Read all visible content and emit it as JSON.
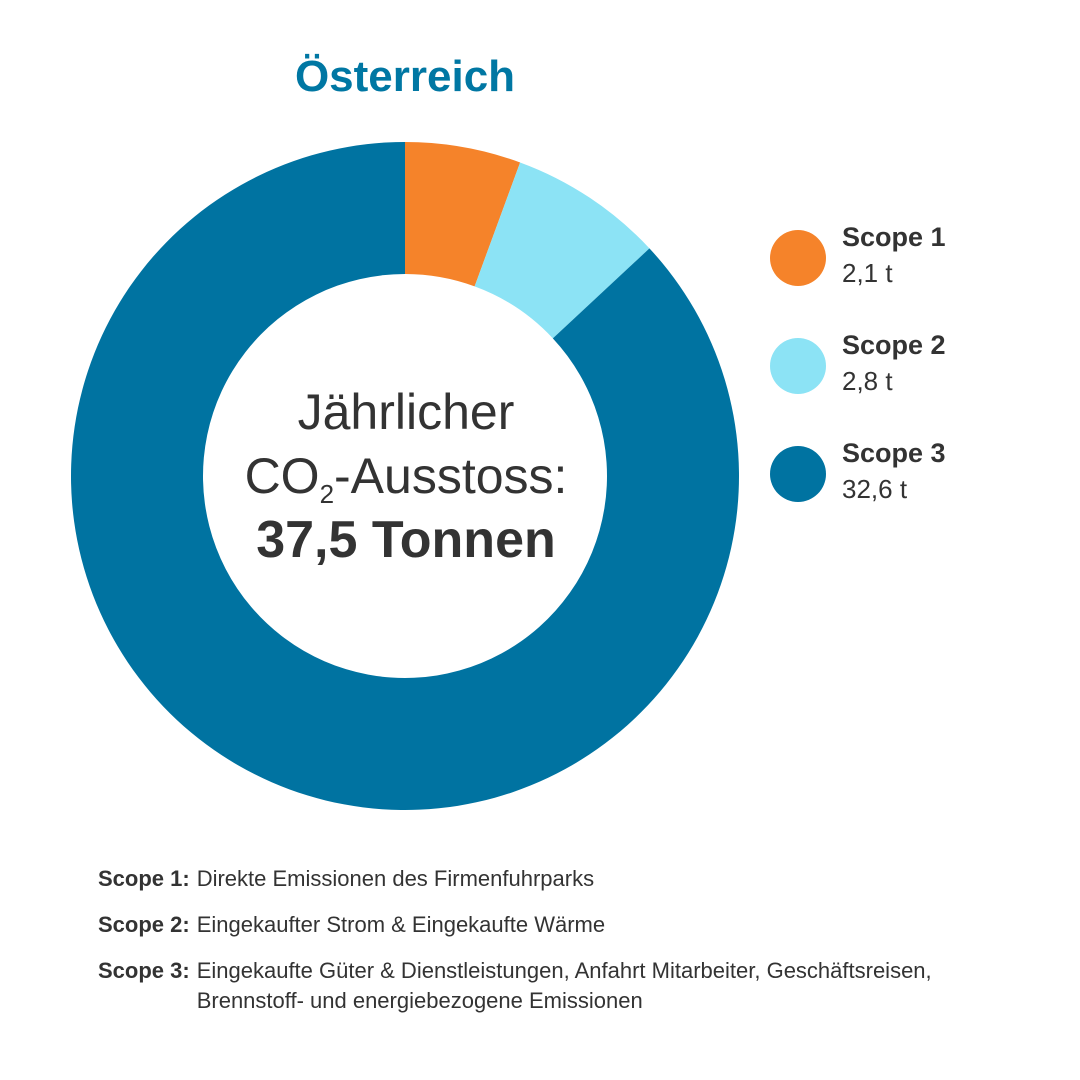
{
  "title": "Österreich",
  "center": {
    "line1": "Jährlicher",
    "co2_prefix": "CO",
    "co2_sub": "2",
    "co2_suffix": "-Ausstoss:",
    "total": "37,5 Tonnen"
  },
  "legend": [
    {
      "label": "Scope 1",
      "value": "2,1 t"
    },
    {
      "label": "Scope 2",
      "value": "2,8 t"
    },
    {
      "label": "Scope 3",
      "value": "32,6 t"
    }
  ],
  "definitions": [
    {
      "term": "Scope 1:",
      "text": "Direkte Emissionen des Firmenfuhrparks"
    },
    {
      "term": "Scope 2:",
      "text": "Eingekaufter Strom & Eingekaufte Wärme"
    },
    {
      "term": "Scope 3:",
      "text": "Eingekaufte Güter & Dienstleistungen, Anfahrt Mitarbeiter, Geschäftsreisen, Brennstoff- und energiebezogene Emissionen"
    }
  ],
  "colors": {
    "title": "#0077a3",
    "scope1": "#f5832a",
    "scope2": "#8ce3f5",
    "scope3": "#0073a1"
  },
  "chart_data": {
    "type": "pie",
    "donut": true,
    "title": "Österreich",
    "categories": [
      "Scope 1",
      "Scope 2",
      "Scope 3"
    ],
    "values": [
      2.1,
      2.8,
      32.6
    ],
    "unit": "t",
    "total": 37.5,
    "legend_position": "right"
  }
}
